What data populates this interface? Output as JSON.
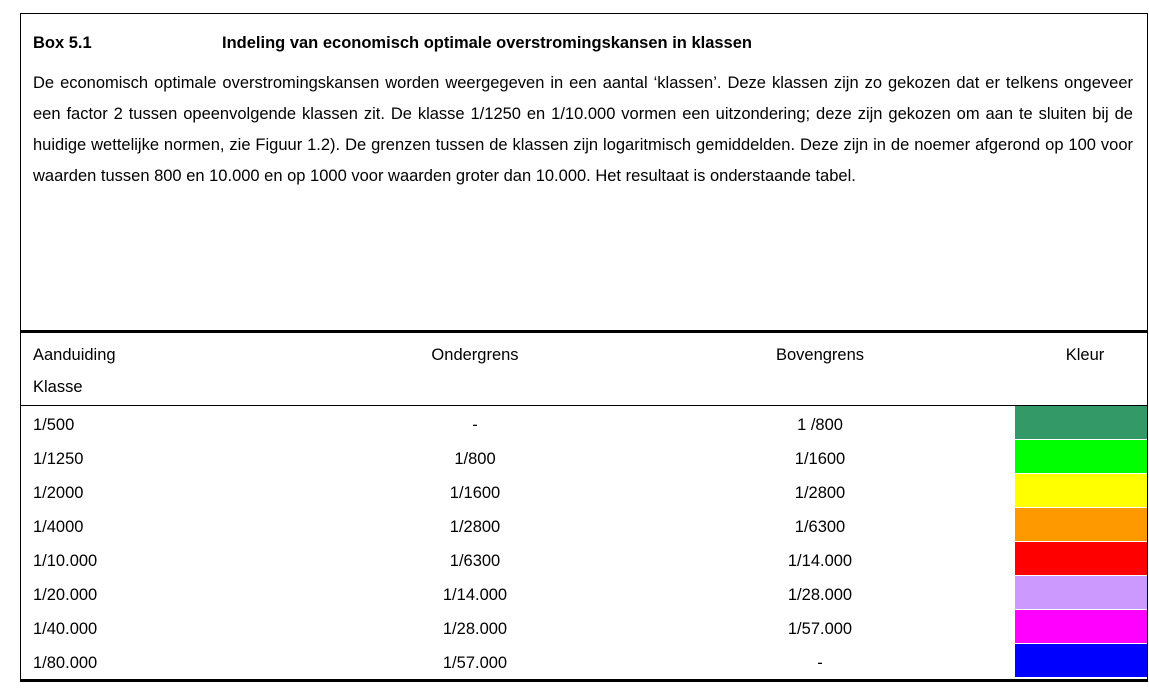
{
  "box": {
    "number": "Box 5.1",
    "title": "Indeling van economisch optimale overstromingskansen in klassen",
    "paragraph": "De economisch optimale overstromingskansen worden weergegeven in een aantal ‘klassen’. Deze klassen zijn zo gekozen dat er telkens ongeveer een factor 2 tussen opeenvolgende klassen zit. De klasse 1/1250 en 1/10.000 vormen een uitzondering; deze zijn gekozen om aan te sluiten bij de huidige wettelijke normen, zie Figuur 1.2). De grenzen tussen de klassen zijn logaritmisch gemiddelden. Deze zijn in de noemer afgerond op 100 voor waarden tussen 800 en 10.000 en op 1000 voor waarden groter dan 10.000. Het resultaat is onderstaande tabel."
  },
  "table": {
    "header": [
      "Aanduiding",
      "Ondergrens",
      "Bovengrens",
      "Kleur"
    ],
    "header_sub": "Klasse",
    "rows": [
      {
        "cells": [
          "1/500",
          "-",
          "1 /800"
        ],
        "color": "#339966"
      },
      {
        "cells": [
          "1/1250",
          "1/800",
          "1/1600"
        ],
        "color": "#00ff00"
      },
      {
        "cells": [
          "1/2000",
          "1/1600",
          "1/2800"
        ],
        "color": "#ffff00"
      },
      {
        "cells": [
          "1/4000",
          "1/2800",
          "1/6300"
        ],
        "color": "#ff9900"
      },
      {
        "cells": [
          "1/10.000",
          "1/6300",
          "1/14.000"
        ],
        "color": "#ff0000"
      },
      {
        "cells": [
          "1/20.000",
          "1/14.000",
          "1/28.000"
        ],
        "color": "#cc99ff"
      },
      {
        "cells": [
          "1/40.000",
          "1/28.000",
          "1/57.000"
        ],
        "color": "#ff00ff"
      },
      {
        "cells": [
          "1/80.000",
          "1/57.000",
          "-"
        ],
        "color": "#0000ff"
      }
    ]
  }
}
